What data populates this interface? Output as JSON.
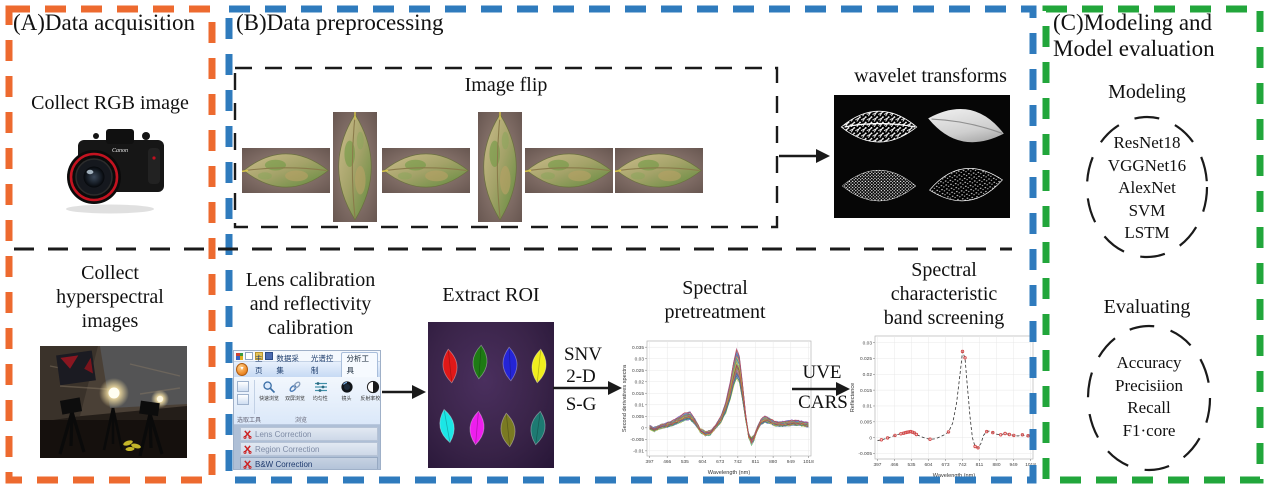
{
  "colors": {
    "panel_a_border": "#ED6A2F",
    "panel_b_border": "#2F7BBD",
    "panel_c_border": "#22A63B",
    "dashed_black": "#1a1a1a",
    "arrow": "#1a1a1a"
  },
  "panel_a": {
    "title": "(A)Data acquisition",
    "collect_rgb_label": "Collect RGB image",
    "camera_brand": "Canon",
    "collect_hyperspectral_label": "Collect\nhyperspectral\nimages"
  },
  "panel_b": {
    "title": "(B)Data preprocessing",
    "image_flip": {
      "label": "Image flip",
      "tiles": [
        "h",
        "v",
        "h",
        "v",
        "h",
        "h"
      ]
    },
    "wavelet": {
      "label": "wavelet transforms",
      "tiles": [
        "veins",
        "solid",
        "dense",
        "sparse"
      ]
    },
    "lens_calibration_label": "Lens calibration\nand reflectivity\ncalibration",
    "extract_roi_label": "Extract ROI",
    "roi_colors": [
      "#e01818",
      "#1e7a14",
      "#2424d6",
      "#f0ee1e",
      "#1ce6e6",
      "#ee1eee",
      "#7a7a22",
      "#1d7a72"
    ],
    "snv_arrow_labels": {
      "top": "SNV",
      "mid": "2-D",
      "bottom": "S-G"
    },
    "spectral_pretreatment_label": "Spectral\npretreatment",
    "uve_arrow_labels": {
      "top": "UVE",
      "bottom": "CARS"
    },
    "band_screening_label": "Spectral\ncharacteristic\nband screening"
  },
  "panel_c": {
    "title": "(C)Modeling and\nModel evaluation",
    "modeling_label": "Modeling",
    "models": [
      "ResNet18",
      "VGGNet16",
      "AlexNet",
      "SVM",
      "LSTM"
    ],
    "evaluating_label": "Evaluating",
    "metrics": [
      "Accuracy",
      "Precisiion",
      "Recall",
      "F1·core"
    ]
  },
  "software": {
    "tabs": [
      "主页",
      "数据采集",
      "光谱控制",
      "分析工具"
    ],
    "active_tab_index": 3,
    "tools": [
      {
        "icon": "magnifier-icon",
        "label": "快速浏览"
      },
      {
        "icon": "link-icon",
        "label": "双屏浏览"
      },
      {
        "icon": "sliders-icon",
        "label": "均匀性"
      },
      {
        "icon": "lens-icon",
        "label": "镜头"
      },
      {
        "icon": "contrast-icon",
        "label": "反射率校正"
      }
    ],
    "group_labels": [
      "选取工具",
      "浏览"
    ],
    "list_items": [
      {
        "label": "Lens Correction",
        "selected": false
      },
      {
        "label": "Region Correction",
        "selected": false
      },
      {
        "label": "B&W Correction",
        "selected": true
      }
    ]
  },
  "chart_data": [
    {
      "type": "line",
      "title": "Spectral pretreatment",
      "xlabel": "Wavelength (nm)",
      "ylabel": "Second derivatives spectra",
      "xlim": [
        397,
        1018
      ],
      "ylim": [
        -0.01,
        0.035
      ],
      "x_ticks": [
        397,
        466,
        535,
        604,
        673,
        742,
        811,
        880,
        949,
        1018
      ],
      "y_ticks": [
        0.035,
        0.03,
        0.025,
        0.02,
        0.015,
        0.01,
        0.005,
        0,
        -0.005,
        -0.01
      ],
      "grid": true,
      "legend": "none",
      "n_series": 55,
      "base_curve": [
        [
          397,
          0.0002
        ],
        [
          415,
          -0.0008
        ],
        [
          435,
          0.0004
        ],
        [
          460,
          0.0012
        ],
        [
          485,
          0.0022
        ],
        [
          510,
          0.0038
        ],
        [
          535,
          0.0055
        ],
        [
          555,
          0.0058
        ],
        [
          575,
          0.003
        ],
        [
          595,
          -0.0012
        ],
        [
          615,
          -0.0028
        ],
        [
          635,
          -0.0022
        ],
        [
          655,
          0.0005
        ],
        [
          675,
          0.004
        ],
        [
          695,
          0.01
        ],
        [
          712,
          0.018
        ],
        [
          725,
          0.026
        ],
        [
          737,
          0.0312
        ],
        [
          748,
          0.0285
        ],
        [
          760,
          0.018
        ],
        [
          772,
          0.006
        ],
        [
          784,
          -0.0035
        ],
        [
          795,
          -0.0062
        ],
        [
          806,
          -0.0045
        ],
        [
          818,
          -0.0005
        ],
        [
          832,
          0.003
        ],
        [
          848,
          0.0042
        ],
        [
          865,
          0.0035
        ],
        [
          885,
          0.0022
        ],
        [
          910,
          0.0018
        ],
        [
          935,
          0.0022
        ],
        [
          960,
          0.0026
        ],
        [
          985,
          0.0022
        ],
        [
          1005,
          0.0018
        ],
        [
          1018,
          0.0015
        ]
      ],
      "palette": [
        "#c23b3b",
        "#3b6fc2",
        "#3ba04a",
        "#e08a2e",
        "#8a5bbf",
        "#b45a8a",
        "#4ab0b8",
        "#9aa23b",
        "#6a6a6a",
        "#d4c23b",
        "#5a8ad4",
        "#d46a5a"
      ]
    },
    {
      "type": "line",
      "title": "Spectral characteristic band screening",
      "xlabel": "Wavelength (nm)",
      "ylabel": "Reflectance",
      "xlim": [
        397,
        1018
      ],
      "ylim": [
        -0.005,
        0.03
      ],
      "x_ticks": [
        397,
        466,
        535,
        604,
        673,
        742,
        811,
        880,
        949,
        1018
      ],
      "y_ticks": [
        0.03,
        0.025,
        0.02,
        0.015,
        0.01,
        0.005,
        0,
        -0.005
      ],
      "grid": true,
      "legend": "none",
      "line_style": "dashed",
      "line_color": "#333333",
      "marker_color": "#d04545",
      "line": [
        [
          397,
          -0.0009
        ],
        [
          415,
          -0.0007
        ],
        [
          435,
          -0.0002
        ],
        [
          455,
          0.0003
        ],
        [
          475,
          0.0009
        ],
        [
          495,
          0.0013
        ],
        [
          515,
          0.0017
        ],
        [
          530,
          0.0019
        ],
        [
          545,
          0.0016
        ],
        [
          560,
          0.0008
        ],
        [
          575,
          0.0003
        ],
        [
          592,
          -0.0002
        ],
        [
          610,
          -0.0005
        ],
        [
          630,
          -0.0004
        ],
        [
          650,
          0.0002
        ],
        [
          668,
          0.0009
        ],
        [
          685,
          0.0018
        ],
        [
          702,
          0.0045
        ],
        [
          718,
          0.011
        ],
        [
          732,
          0.02
        ],
        [
          742,
          0.0272
        ],
        [
          752,
          0.0252
        ],
        [
          762,
          0.016
        ],
        [
          772,
          0.007
        ],
        [
          782,
          0
        ],
        [
          793,
          -0.0028
        ],
        [
          805,
          -0.0032
        ],
        [
          817,
          -0.0018
        ],
        [
          828,
          0.0008
        ],
        [
          840,
          0.0019
        ],
        [
          852,
          0.0021
        ],
        [
          865,
          0.0016
        ],
        [
          880,
          0.0011
        ],
        [
          897,
          0.0009
        ],
        [
          915,
          0.0013
        ],
        [
          932,
          0.001
        ],
        [
          950,
          0.0007
        ],
        [
          968,
          0.0005
        ],
        [
          985,
          0.0009
        ],
        [
          1000,
          0.0004
        ],
        [
          1018,
          0.0008
        ]
      ],
      "markers": [
        [
          413,
          -0.0007
        ],
        [
          438,
          -0.0001
        ],
        [
          468,
          0.0007
        ],
        [
          492,
          0.0012
        ],
        [
          503,
          0.0014
        ],
        [
          511,
          0.0016
        ],
        [
          518,
          0.0017
        ],
        [
          525,
          0.0018
        ],
        [
          532,
          0.0019
        ],
        [
          539,
          0.0017
        ],
        [
          547,
          0.0015
        ],
        [
          555,
          0.001
        ],
        [
          610,
          -0.0005
        ],
        [
          685,
          0.0018
        ],
        [
          742,
          0.0272
        ],
        [
          752,
          0.0252
        ],
        [
          793,
          -0.0028
        ],
        [
          805,
          -0.0032
        ],
        [
          840,
          0.0019
        ],
        [
          865,
          0.0016
        ],
        [
          897,
          0.0009
        ],
        [
          915,
          0.0013
        ],
        [
          932,
          0.001
        ],
        [
          950,
          0.0007
        ],
        [
          985,
          0.0009
        ],
        [
          1008,
          0.0006
        ]
      ]
    }
  ]
}
